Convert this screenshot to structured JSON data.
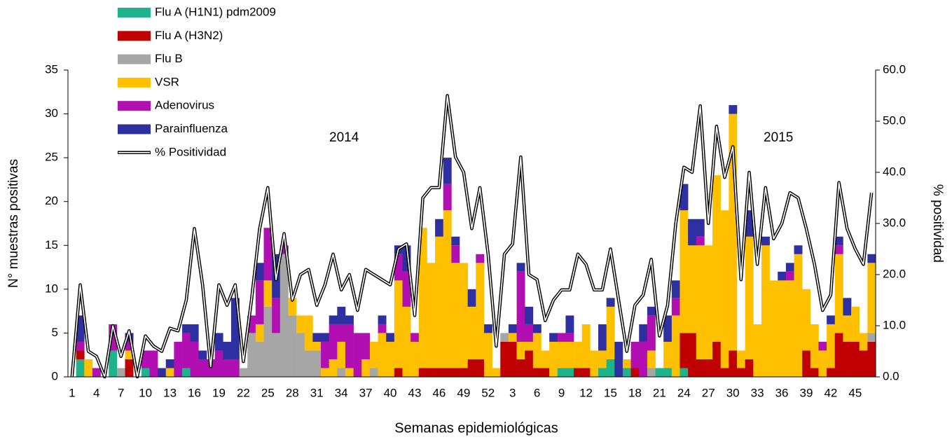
{
  "chart_data": {
    "type": "bar",
    "stacked": true,
    "x_label": "Semanas epidemiológicas",
    "y_label": "N° muestras positivas",
    "y2_label": "% positividad",
    "annotations": [
      "2014",
      "2015"
    ],
    "categories": [
      "1",
      null,
      null,
      "4",
      null,
      null,
      "7",
      null,
      null,
      "10",
      null,
      null,
      "13",
      null,
      null,
      "16",
      null,
      null,
      "19",
      null,
      null,
      "22",
      null,
      null,
      "25",
      null,
      null,
      "28",
      null,
      null,
      "31",
      null,
      null,
      "34",
      null,
      null,
      "37",
      null,
      null,
      "40",
      null,
      null,
      "43",
      null,
      null,
      "46",
      null,
      null,
      "49",
      null,
      null,
      "52",
      null,
      null,
      "3",
      null,
      null,
      "6",
      null,
      null,
      "9",
      null,
      null,
      "12",
      null,
      null,
      "15",
      null,
      null,
      "18",
      null,
      null,
      "21",
      null,
      null,
      "24",
      null,
      null,
      "27",
      null,
      null,
      "30",
      null,
      null,
      "33",
      null,
      null,
      "36",
      null,
      null,
      "39",
      null,
      null,
      "42",
      null,
      null,
      "45",
      null,
      null
    ],
    "ylim": [
      0,
      35
    ],
    "yticks": [
      0,
      5,
      10,
      15,
      20,
      25,
      30,
      35
    ],
    "y2lim": [
      0,
      60
    ],
    "y2ticks": [
      {
        "value": 0,
        "label": "0.0"
      },
      {
        "value": 10,
        "label": "10.0"
      },
      {
        "value": 20,
        "label": "20.0"
      },
      {
        "value": 30,
        "label": "30.0"
      },
      {
        "value": 40,
        "label": "40.0"
      },
      {
        "value": 50,
        "label": "50.0"
      },
      {
        "value": 60,
        "label": "60.0"
      }
    ],
    "legend": "top-left",
    "series": [
      {
        "name": "Flu A (H1N1) pdm2009",
        "color": "#1fb38c",
        "values": [
          0,
          2,
          0,
          0,
          0,
          3,
          0,
          0,
          0,
          1,
          0,
          0,
          0,
          0,
          1,
          0,
          0,
          0,
          0,
          0,
          0,
          0,
          0,
          0,
          0,
          0,
          0,
          0,
          0,
          0,
          0,
          0,
          0,
          0,
          0,
          0,
          0,
          0,
          0,
          0,
          0,
          0,
          0,
          0,
          0,
          0,
          0,
          0,
          0,
          0,
          0,
          0,
          0,
          0,
          0,
          0,
          0,
          0,
          0,
          0,
          1,
          1,
          0,
          0,
          0,
          1,
          2,
          0,
          1,
          0,
          0,
          0,
          1,
          1,
          0,
          1,
          0,
          0,
          0,
          0,
          0,
          0,
          0,
          0,
          0,
          0,
          0,
          0,
          0,
          0,
          0,
          0,
          0,
          0,
          0,
          0,
          0,
          0,
          0
        ]
      },
      {
        "name": "Flu A (H3N2)",
        "color": "#c00000",
        "values": [
          0,
          1,
          0,
          0,
          0,
          0,
          0,
          2,
          0,
          0,
          0,
          0,
          0,
          0,
          0,
          0,
          0,
          0,
          0,
          0,
          0,
          0,
          0,
          0,
          0,
          0,
          0,
          0,
          0,
          0,
          0,
          0,
          0,
          0,
          0,
          0,
          0,
          0,
          0,
          0,
          1,
          0,
          0,
          1,
          1,
          1,
          1,
          1,
          1,
          2,
          2,
          0,
          0,
          4,
          4,
          2,
          3,
          1,
          1,
          0,
          0,
          0,
          1,
          1,
          0,
          0,
          0,
          0,
          0,
          1,
          0,
          0,
          0,
          0,
          0,
          4,
          5,
          2,
          2,
          4,
          1,
          3,
          1,
          2,
          0,
          0,
          0,
          0,
          0,
          0,
          3,
          1,
          0,
          1,
          5,
          4,
          4,
          3,
          4
        ]
      },
      {
        "name": "Flu B",
        "color": "#a6a6a6",
        "values": [
          0,
          0,
          0,
          0,
          0,
          0,
          1,
          0,
          0,
          0,
          0,
          0,
          0,
          0,
          0,
          0,
          0,
          0,
          0,
          0,
          0,
          1,
          5,
          4,
          8,
          5,
          14,
          7,
          5,
          3,
          3,
          0,
          0,
          1,
          0,
          0,
          0,
          1,
          0,
          0,
          0,
          0,
          0,
          0,
          0,
          0,
          0,
          0,
          0,
          0,
          0,
          0,
          0,
          1,
          0,
          0,
          0,
          0,
          0,
          0,
          0,
          0,
          0,
          0,
          0,
          0,
          0,
          0,
          0,
          0,
          0,
          1,
          0,
          0,
          0,
          0,
          0,
          0,
          0,
          0,
          0,
          0,
          0,
          0,
          0,
          0,
          0,
          0,
          0,
          0,
          0,
          0,
          0,
          0,
          0,
          0,
          0,
          0,
          1
        ]
      },
      {
        "name": "VSR",
        "color": "#ffc000",
        "values": [
          0,
          0,
          2,
          0,
          0,
          0,
          0,
          1,
          0,
          0,
          0,
          0,
          1,
          0,
          0,
          0,
          0,
          0,
          0,
          0,
          0,
          0,
          0,
          2,
          3,
          0,
          0,
          2,
          2,
          4,
          1,
          1,
          2,
          3,
          1,
          0,
          2,
          3,
          5,
          4,
          10,
          8,
          4,
          16,
          12,
          15,
          18,
          12,
          12,
          6,
          11,
          5,
          1,
          0,
          1,
          2,
          1,
          4,
          2,
          4,
          3,
          3,
          3,
          5,
          3,
          2,
          6,
          0,
          1,
          0,
          0,
          2,
          0,
          3,
          7,
          14,
          10,
          13,
          13,
          19,
          18,
          27,
          2,
          14,
          6,
          15,
          11,
          11,
          11,
          14,
          7,
          5,
          3,
          5,
          9,
          3,
          4,
          2,
          8
        ]
      },
      {
        "name": "Adenovirus",
        "color": "#b20fb2",
        "values": [
          0,
          1,
          0,
          1,
          0,
          3,
          0,
          1,
          0,
          2,
          3,
          0,
          0,
          4,
          4,
          4,
          2,
          2,
          3,
          2,
          2,
          0,
          2,
          5,
          6,
          4,
          1,
          0,
          0,
          0,
          0,
          3,
          4,
          2,
          5,
          5,
          3,
          0,
          1,
          0,
          3,
          4,
          1,
          0,
          0,
          0,
          3,
          2,
          0,
          0,
          1,
          0,
          0,
          0,
          0,
          8,
          2,
          0,
          0,
          0,
          1,
          1,
          0,
          0,
          0,
          0,
          0,
          0,
          0,
          3,
          4,
          4,
          0,
          0,
          2,
          0,
          0,
          1,
          0,
          0,
          0,
          0,
          0,
          0,
          0,
          0,
          0,
          0,
          1,
          0,
          0,
          0,
          1,
          0,
          1,
          0,
          0,
          0,
          0
        ]
      },
      {
        "name": "Parainfluenza",
        "color": "#2e2fa0",
        "values": [
          0,
          3,
          0,
          0,
          0,
          0,
          0,
          1,
          0,
          0,
          0,
          1,
          1,
          0,
          1,
          2,
          1,
          0,
          2,
          2,
          7,
          0,
          0,
          2,
          0,
          5,
          0,
          0,
          0,
          0,
          1,
          1,
          1,
          2,
          1,
          0,
          0,
          0,
          1,
          1,
          1,
          3,
          0,
          0,
          0,
          2,
          3,
          1,
          0,
          2,
          0,
          1,
          0,
          0,
          1,
          1,
          2,
          1,
          0,
          1,
          0,
          2,
          0,
          0,
          0,
          3,
          1,
          4,
          0,
          0,
          2,
          1,
          0,
          3,
          2,
          3,
          3,
          2,
          0,
          0,
          0,
          1,
          0,
          3,
          0,
          1,
          0,
          1,
          1,
          1,
          0,
          0,
          0,
          1,
          1,
          2,
          0,
          0,
          1
        ]
      },
      {
        "name": "% Positividad",
        "type": "line",
        "axis": "y2",
        "color": "#000000",
        "values": [
          0,
          18,
          5,
          4,
          0,
          10,
          4,
          9,
          0,
          8,
          6,
          5,
          9.5,
          9,
          15,
          29,
          18,
          2,
          18,
          14,
          18,
          3,
          15,
          29,
          37,
          19,
          28,
          15,
          20,
          21,
          14,
          18,
          24,
          17,
          20,
          13,
          21,
          20,
          19,
          18,
          25,
          26,
          12,
          35,
          37,
          37,
          55,
          43,
          40,
          29,
          37,
          24,
          6,
          24,
          26,
          43,
          20,
          19,
          11,
          15,
          17,
          17,
          24,
          22,
          17,
          17,
          25,
          15,
          5,
          14,
          16,
          23,
          8,
          14,
          30,
          41,
          40,
          53,
          30,
          49,
          39,
          45,
          19,
          40,
          22,
          37,
          27,
          30,
          36,
          35,
          29,
          22,
          13,
          16,
          38,
          29,
          25,
          22,
          36
        ]
      }
    ]
  }
}
